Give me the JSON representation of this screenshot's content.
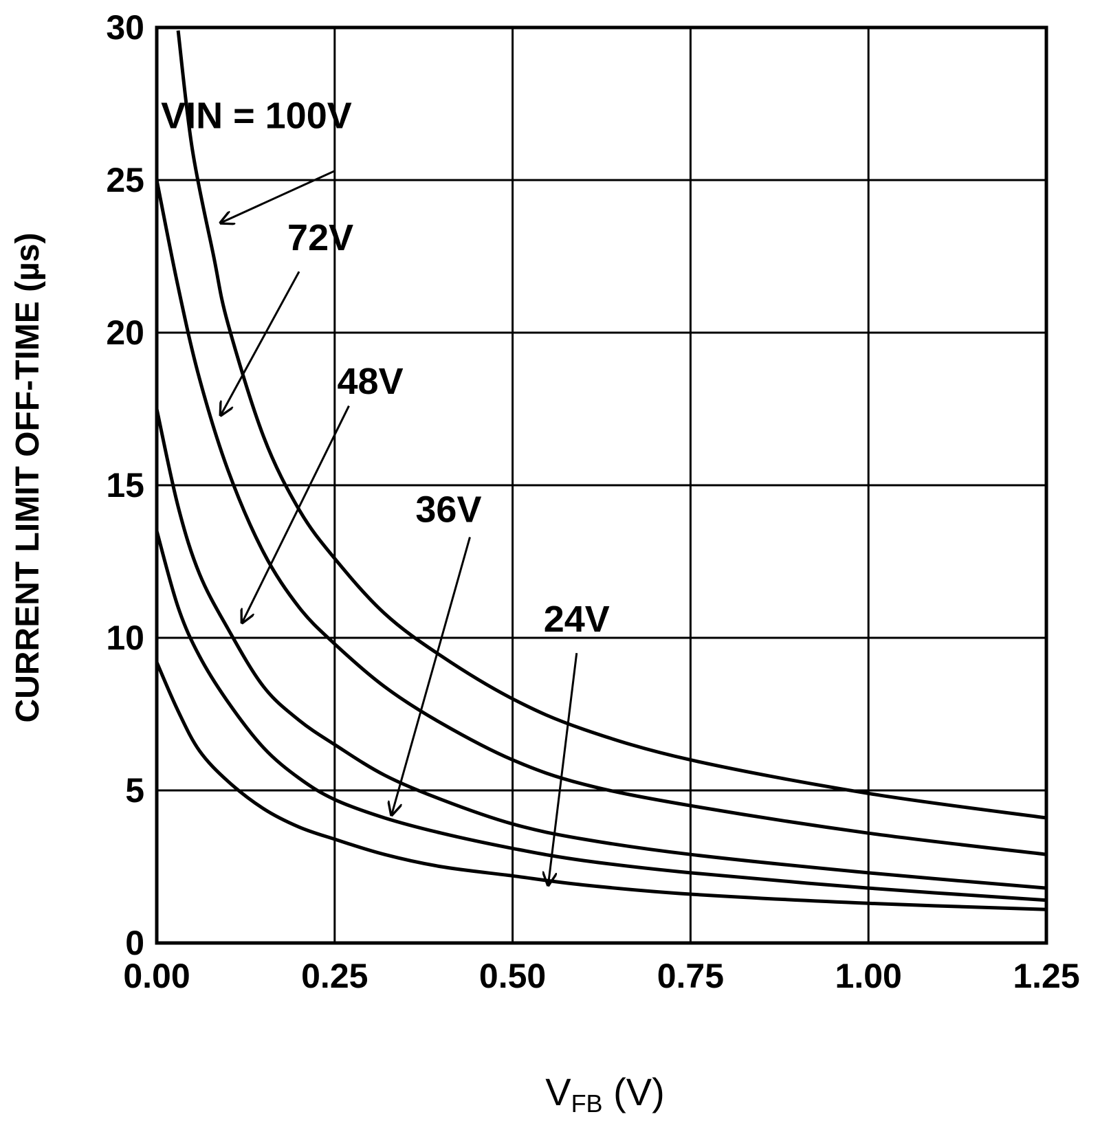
{
  "chart_data": {
    "type": "line",
    "title": "",
    "xlabel": "V",
    "xlabel_subscript": "FB",
    "xlabel_unit": " (V)",
    "ylabel": "CURRENT LIMIT OFF-TIME (µs)",
    "xlim": [
      0,
      1.25
    ],
    "ylim": [
      0,
      30
    ],
    "grid": true,
    "x_ticks": [
      "0.00",
      "0.25",
      "0.50",
      "0.75",
      "1.00",
      "1.25"
    ],
    "x_tick_values": [
      0,
      0.25,
      0.5,
      0.75,
      1.0,
      1.25
    ],
    "y_ticks": [
      "0",
      "5",
      "10",
      "15",
      "20",
      "25",
      "30"
    ],
    "y_tick_values": [
      0,
      5,
      10,
      15,
      20,
      25,
      30
    ],
    "series": [
      {
        "name": "VIN = 100V",
        "x": [
          0.03,
          0.05,
          0.08,
          0.1,
          0.15,
          0.2,
          0.25,
          0.32,
          0.4,
          0.5,
          0.6,
          0.75,
          1.0,
          1.25
        ],
        "values": [
          29.9,
          26.0,
          22.5,
          20.3,
          16.6,
          14.2,
          12.6,
          10.8,
          9.4,
          8.0,
          7.0,
          6.0,
          4.9,
          4.1
        ]
      },
      {
        "name": "72V",
        "x": [
          0.0,
          0.03,
          0.06,
          0.1,
          0.15,
          0.2,
          0.25,
          0.32,
          0.4,
          0.5,
          0.6,
          0.75,
          1.0,
          1.25
        ],
        "values": [
          25.0,
          21.5,
          18.5,
          15.5,
          12.8,
          11.0,
          9.8,
          8.4,
          7.2,
          6.0,
          5.2,
          4.5,
          3.6,
          2.9
        ]
      },
      {
        "name": "48V",
        "x": [
          0.0,
          0.03,
          0.06,
          0.1,
          0.15,
          0.2,
          0.25,
          0.32,
          0.4,
          0.5,
          0.6,
          0.75,
          1.0,
          1.25
        ],
        "values": [
          17.5,
          14.3,
          12.1,
          10.3,
          8.4,
          7.3,
          6.5,
          5.5,
          4.7,
          3.9,
          3.4,
          2.9,
          2.3,
          1.8
        ]
      },
      {
        "name": "36V",
        "x": [
          0.0,
          0.03,
          0.06,
          0.1,
          0.15,
          0.2,
          0.25,
          0.32,
          0.4,
          0.5,
          0.6,
          0.75,
          1.0,
          1.25
        ],
        "values": [
          13.5,
          11.0,
          9.4,
          7.9,
          6.4,
          5.4,
          4.7,
          4.1,
          3.6,
          3.1,
          2.7,
          2.3,
          1.8,
          1.4
        ]
      },
      {
        "name": "24V",
        "x": [
          0.0,
          0.03,
          0.06,
          0.1,
          0.15,
          0.2,
          0.25,
          0.32,
          0.4,
          0.5,
          0.6,
          0.75,
          1.0,
          1.25
        ],
        "values": [
          9.2,
          7.6,
          6.3,
          5.3,
          4.4,
          3.8,
          3.4,
          2.9,
          2.5,
          2.2,
          1.9,
          1.6,
          1.3,
          1.1
        ]
      }
    ],
    "annotations": [
      {
        "text": "VIN = 100V",
        "label_at": [
          0.14,
          26.7
        ],
        "arrow_from": [
          0.25,
          25.3
        ],
        "arrow_to": [
          0.09,
          23.6
        ]
      },
      {
        "text": "72V",
        "label_at": [
          0.23,
          22.7
        ],
        "arrow_from": [
          0.2,
          22.0
        ],
        "arrow_to": [
          0.09,
          17.3
        ]
      },
      {
        "text": "48V",
        "label_at": [
          0.3,
          18.0
        ],
        "arrow_from": [
          0.27,
          17.6
        ],
        "arrow_to": [
          0.12,
          10.5
        ]
      },
      {
        "text": "36V",
        "label_at": [
          0.41,
          13.8
        ],
        "arrow_from": [
          0.44,
          13.3
        ],
        "arrow_to": [
          0.33,
          4.2
        ]
      },
      {
        "text": "24V",
        "label_at": [
          0.59,
          10.2
        ],
        "arrow_from": [
          0.59,
          9.5
        ],
        "arrow_to": [
          0.55,
          1.9
        ]
      }
    ]
  }
}
